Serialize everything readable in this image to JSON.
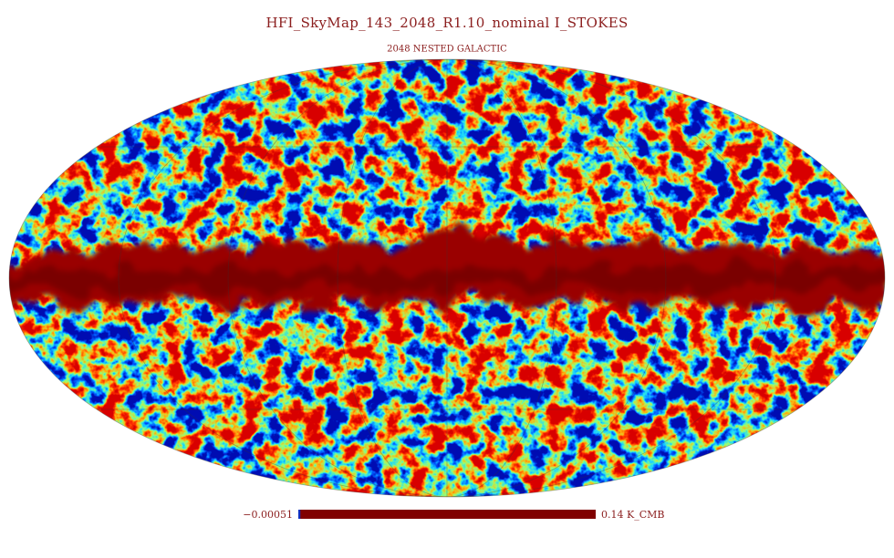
{
  "header": {
    "title": "HFI_SkyMap_143_2048_R1.10_nominal   I_STOKES",
    "subtitle": "2048 NESTED GALACTIC"
  },
  "colorbar": {
    "min": {
      "value": -0.00051,
      "label": "−0.00051"
    },
    "max": {
      "value": 0.14,
      "label": "0.14 K_CMB"
    }
  }
}
